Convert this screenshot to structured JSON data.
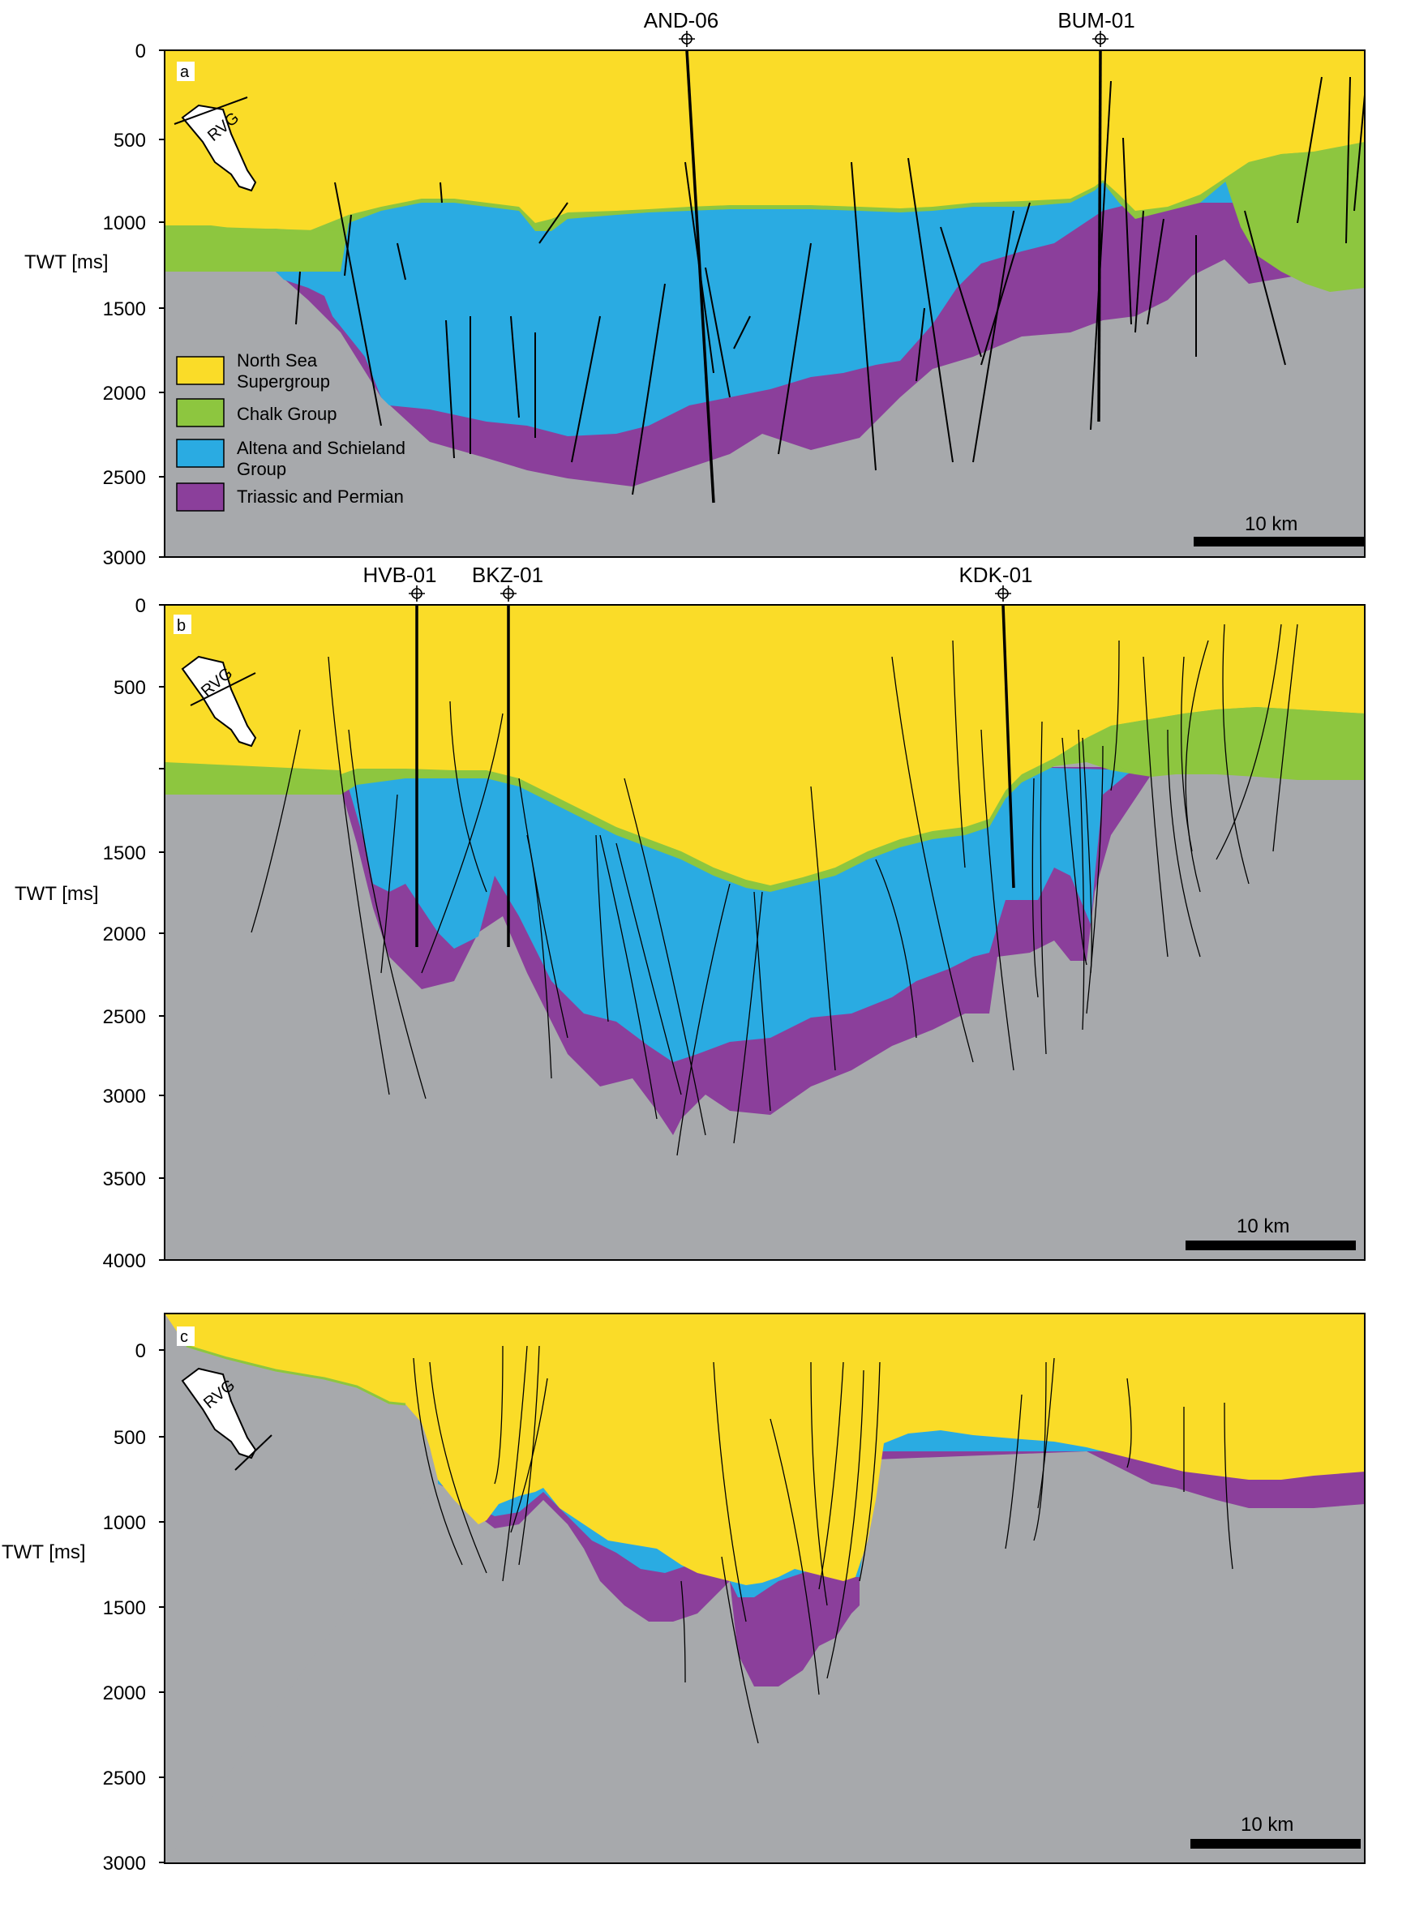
{
  "figure": {
    "colors": {
      "north_sea": "#FADC28",
      "chalk": "#8DC63F",
      "altena": "#2AABE2",
      "triassic": "#8B3F9B",
      "basement": "#A7A9AC",
      "fault": "#000000"
    },
    "y_axis_label": "TWT [ms]",
    "scale_bar_label": "10 km",
    "inset_label": "RVG",
    "legend": [
      {
        "key": "north_sea",
        "label_lines": [
          "North Sea",
          "Supergroup"
        ]
      },
      {
        "key": "chalk",
        "label_lines": [
          "Chalk Group"
        ]
      },
      {
        "key": "altena",
        "label_lines": [
          "Altena and Schieland",
          "Group"
        ]
      },
      {
        "key": "triassic",
        "label_lines": [
          "Triassic and Permian"
        ]
      }
    ],
    "panels": [
      {
        "id": "a",
        "twt_range_ms": [
          0,
          3000
        ],
        "ticks": [
          "0",
          "500",
          "1000",
          "1500",
          "2000",
          "2500",
          "3000"
        ],
        "wells": [
          "AND-06",
          "BUM-01"
        ]
      },
      {
        "id": "b",
        "twt_range_ms": [
          0,
          4000
        ],
        "ticks": [
          "0",
          "500",
          "1500",
          "2000",
          "2500",
          "3000",
          "3500",
          "4000"
        ],
        "wells": [
          "HVB-01",
          "BKZ-01",
          "KDK-01"
        ]
      },
      {
        "id": "c",
        "twt_range_ms": [
          -150,
          3000
        ],
        "ticks": [
          "0",
          "500",
          "1000",
          "1500",
          "2000",
          "2500",
          "3000"
        ],
        "wells": []
      }
    ]
  }
}
